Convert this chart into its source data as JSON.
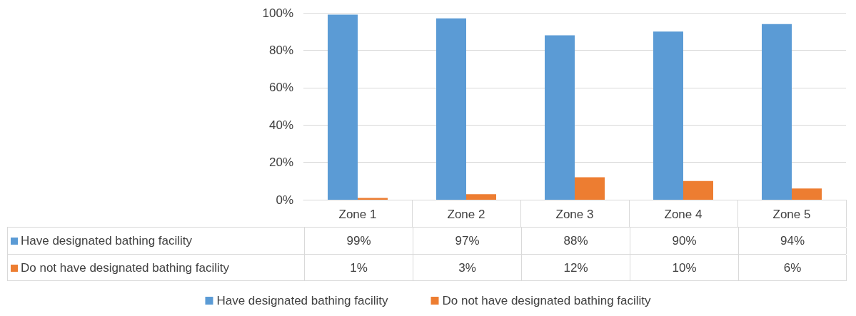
{
  "chart_data": {
    "type": "bar",
    "categories": [
      "Zone 1",
      "Zone 2",
      "Zone 3",
      "Zone 4",
      "Zone 5"
    ],
    "series": [
      {
        "name": "Have designated bathing facility",
        "color": "#5b9bd5",
        "values": [
          99,
          97,
          88,
          90,
          94
        ],
        "value_labels": [
          "99%",
          "97%",
          "88%",
          "90%",
          "94%"
        ]
      },
      {
        "name": "Do not have designated bathing facility",
        "color": "#ed7d31",
        "values": [
          1,
          3,
          12,
          10,
          6
        ],
        "value_labels": [
          "1%",
          "3%",
          "12%",
          "10%",
          "6%"
        ]
      }
    ],
    "ylim": [
      0,
      100
    ],
    "yticks": [
      {
        "value": 0,
        "label": "0%"
      },
      {
        "value": 20,
        "label": "20%"
      },
      {
        "value": 40,
        "label": "40%"
      },
      {
        "value": 60,
        "label": "60%"
      },
      {
        "value": 80,
        "label": "80%"
      },
      {
        "value": 100,
        "label": "100%"
      }
    ],
    "grid": "y",
    "legend": "bottom"
  }
}
